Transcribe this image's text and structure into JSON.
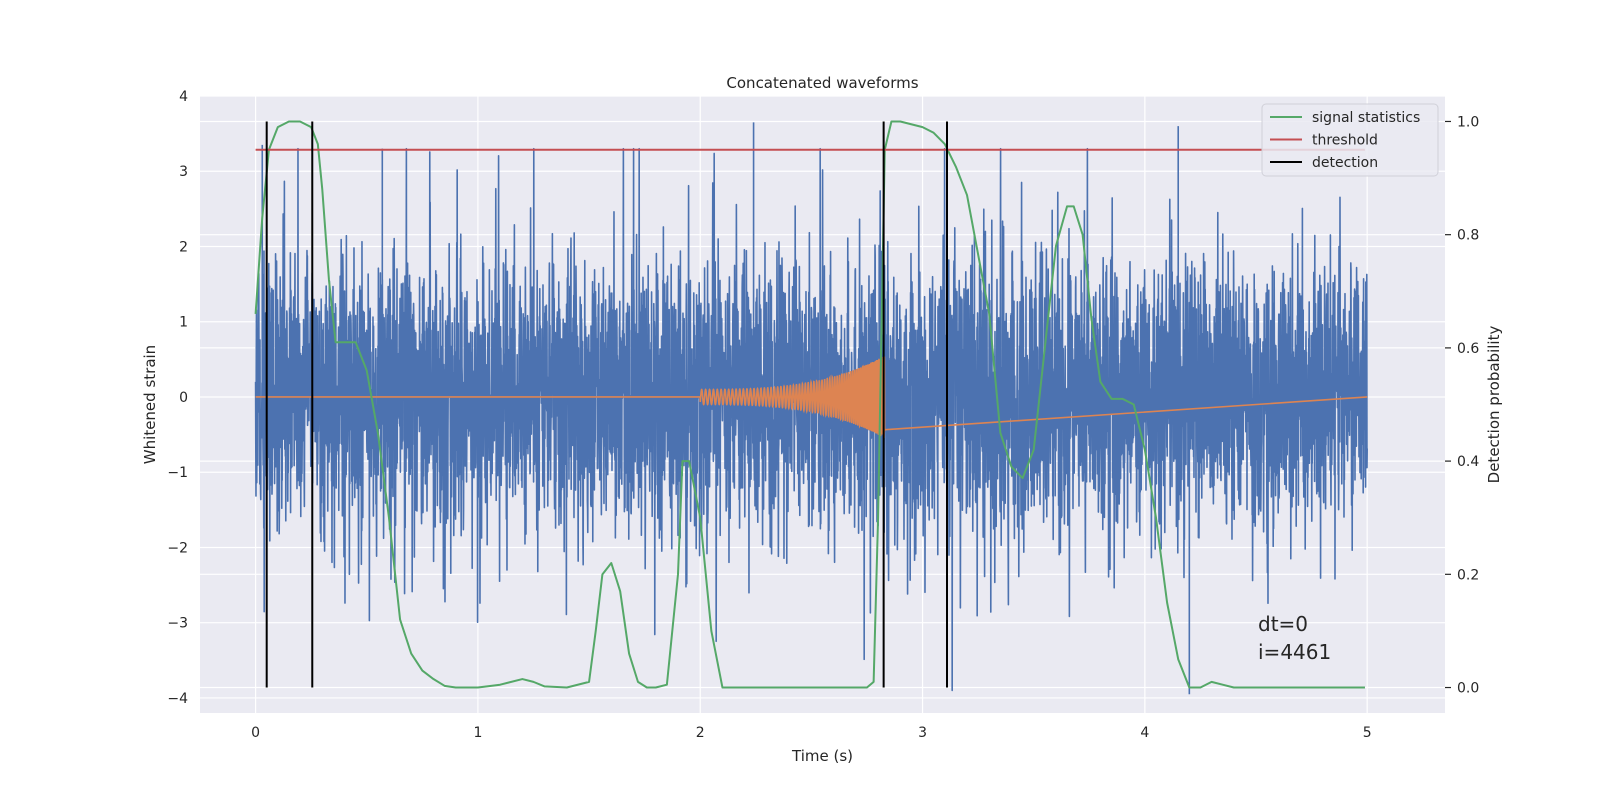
{
  "chart_data": {
    "type": "line",
    "title": "Concatenated waveforms",
    "xlabel": "Time (s)",
    "ylabel": "Whitened strain",
    "y2label": "Detection probability",
    "xlim": [
      -0.25,
      5.35
    ],
    "ylim": [
      -4.2,
      4.0
    ],
    "y2lim": [
      -0.045,
      1.045
    ],
    "xticks": [
      "0",
      "1",
      "2",
      "3",
      "4",
      "5"
    ],
    "xtick_values": [
      0,
      1,
      2,
      3,
      4,
      5
    ],
    "yticks": [
      "−4",
      "−3",
      "−2",
      "−1",
      "0",
      "1",
      "2",
      "3",
      "4"
    ],
    "ytick_values": [
      -4,
      -3,
      -2,
      -1,
      0,
      1,
      2,
      3,
      4
    ],
    "y2ticks": [
      "0.0",
      "0.2",
      "0.4",
      "0.6",
      "0.8",
      "1.0"
    ],
    "y2tick_values": [
      0.0,
      0.2,
      0.4,
      0.6,
      0.8,
      1.0
    ],
    "grid": true,
    "legend_position": "top-right",
    "colors": {
      "strain": "#4c72b0",
      "injection": "#dd8452",
      "signal_statistics": "#55a868",
      "threshold": "#c44e52",
      "detection": "#000000",
      "background": "#eaeaf2",
      "grid": "#ffffff"
    },
    "series": [
      {
        "name": "signal statistics",
        "axis": "right",
        "x": [
          0.0,
          0.03,
          0.06,
          0.1,
          0.15,
          0.2,
          0.25,
          0.28,
          0.3,
          0.33,
          0.36,
          0.4,
          0.45,
          0.5,
          0.55,
          0.6,
          0.65,
          0.7,
          0.75,
          0.8,
          0.85,
          0.9,
          1.0,
          1.1,
          1.2,
          1.25,
          1.3,
          1.4,
          1.5,
          1.53,
          1.56,
          1.6,
          1.64,
          1.68,
          1.72,
          1.76,
          1.8,
          1.85,
          1.9,
          1.92,
          1.95,
          2.0,
          2.05,
          2.1,
          2.2,
          2.4,
          2.6,
          2.75,
          2.78,
          2.8,
          2.83,
          2.86,
          2.9,
          3.0,
          3.05,
          3.1,
          3.15,
          3.2,
          3.3,
          3.35,
          3.4,
          3.45,
          3.5,
          3.55,
          3.6,
          3.65,
          3.68,
          3.72,
          3.76,
          3.8,
          3.85,
          3.9,
          3.95,
          4.0,
          4.05,
          4.1,
          4.15,
          4.2,
          4.25,
          4.3,
          4.35,
          4.4,
          4.6,
          4.8,
          4.99
        ],
        "values": [
          0.66,
          0.83,
          0.95,
          0.99,
          1.0,
          1.0,
          0.99,
          0.96,
          0.88,
          0.72,
          0.61,
          0.61,
          0.61,
          0.56,
          0.45,
          0.3,
          0.12,
          0.06,
          0.03,
          0.015,
          0.003,
          0.0,
          0.0,
          0.005,
          0.015,
          0.01,
          0.002,
          0.0,
          0.01,
          0.1,
          0.2,
          0.22,
          0.17,
          0.06,
          0.01,
          0.0,
          0.0,
          0.005,
          0.2,
          0.4,
          0.4,
          0.3,
          0.1,
          0.0,
          0.0,
          0.0,
          0.0,
          0.0,
          0.01,
          0.3,
          0.95,
          1.0,
          1.0,
          0.99,
          0.98,
          0.96,
          0.92,
          0.87,
          0.66,
          0.45,
          0.39,
          0.37,
          0.42,
          0.6,
          0.78,
          0.85,
          0.85,
          0.8,
          0.65,
          0.54,
          0.51,
          0.51,
          0.5,
          0.42,
          0.3,
          0.15,
          0.05,
          0.0,
          0.0,
          0.01,
          0.005,
          0.0,
          0.0,
          0.0,
          0.0
        ]
      },
      {
        "name": "threshold",
        "axis": "right",
        "x": [
          0.0,
          4.99
        ],
        "values": [
          0.95,
          0.95
        ]
      },
      {
        "name": "detection",
        "axis": "right",
        "type": "vlines",
        "x": [
          0.05,
          0.255,
          2.825,
          3.11
        ],
        "range": [
          0.0,
          1.0
        ]
      }
    ],
    "unlabeled_series": [
      {
        "description_color": "strain",
        "axis": "left",
        "x_range": [
          0.0,
          5.0
        ],
        "amplitude_typical": 1.0,
        "peak_values": [
          3.65,
          3.6,
          3.4
        ]
      },
      {
        "description_color": "injection",
        "axis": "left",
        "x_range": [
          2.0,
          2.83
        ],
        "peak_amplitude": 0.55
      }
    ],
    "annotations": [
      "dt=0",
      "i=4461"
    ]
  }
}
